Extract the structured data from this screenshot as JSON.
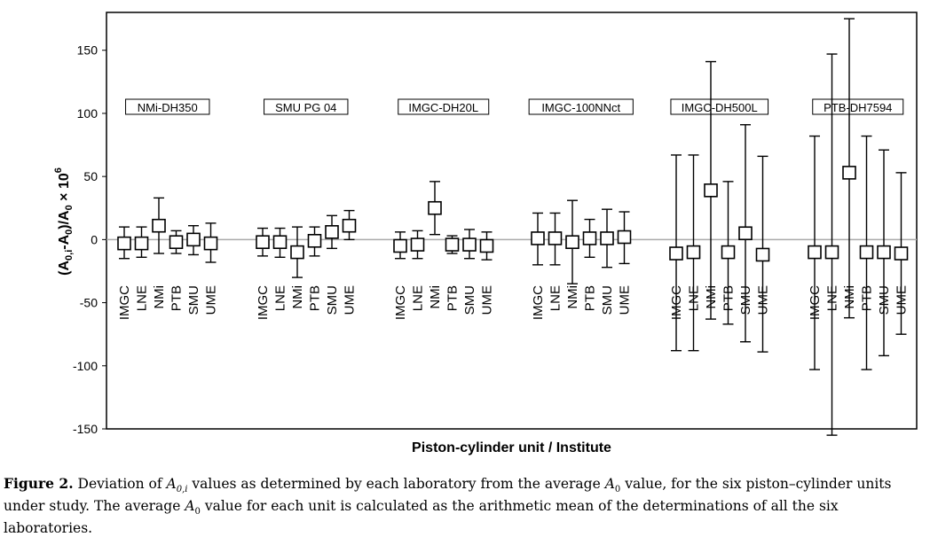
{
  "chart_data": {
    "type": "error-bar",
    "xlabel": "Piston-cylinder unit / Institute",
    "ylabel": "(A0,i-A0)/A0 × 10^6",
    "ylim": [
      -150,
      180
    ],
    "yticks": [
      -150,
      -100,
      -50,
      0,
      50,
      100,
      150
    ],
    "institutes": [
      "IMGC",
      "LNE",
      "NMi",
      "PTB",
      "SMU",
      "UME"
    ],
    "groups": [
      {
        "name": "NMi-DH350",
        "points": [
          {
            "inst": "IMGC",
            "y": -3,
            "lo": -15,
            "hi": 10
          },
          {
            "inst": "LNE",
            "y": -3,
            "lo": -14,
            "hi": 10
          },
          {
            "inst": "NMi",
            "y": 11,
            "lo": -11,
            "hi": 33
          },
          {
            "inst": "PTB",
            "y": -2,
            "lo": -11,
            "hi": 7
          },
          {
            "inst": "SMU",
            "y": 0,
            "lo": -12,
            "hi": 11
          },
          {
            "inst": "UME",
            "y": -3,
            "lo": -18,
            "hi": 13
          }
        ]
      },
      {
        "name": "SMU PG 04",
        "points": [
          {
            "inst": "IMGC",
            "y": -2,
            "lo": -13,
            "hi": 9
          },
          {
            "inst": "LNE",
            "y": -2,
            "lo": -14,
            "hi": 9
          },
          {
            "inst": "NMi",
            "y": -10,
            "lo": -30,
            "hi": 10
          },
          {
            "inst": "PTB",
            "y": -1,
            "lo": -13,
            "hi": 10
          },
          {
            "inst": "SMU",
            "y": 6,
            "lo": -7,
            "hi": 19
          },
          {
            "inst": "UME",
            "y": 11,
            "lo": 0,
            "hi": 23
          }
        ]
      },
      {
        "name": "IMGC-DH20L",
        "points": [
          {
            "inst": "IMGC",
            "y": -5,
            "lo": -15,
            "hi": 6
          },
          {
            "inst": "LNE",
            "y": -4,
            "lo": -15,
            "hi": 7
          },
          {
            "inst": "NMi",
            "y": 25,
            "lo": 4,
            "hi": 46
          },
          {
            "inst": "PTB",
            "y": -4,
            "lo": -11,
            "hi": 3
          },
          {
            "inst": "SMU",
            "y": -4,
            "lo": -15,
            "hi": 8
          },
          {
            "inst": "UME",
            "y": -5,
            "lo": -16,
            "hi": 6
          }
        ]
      },
      {
        "name": "IMGC-100NNct",
        "points": [
          {
            "inst": "IMGC",
            "y": 1,
            "lo": -20,
            "hi": 21
          },
          {
            "inst": "LNE",
            "y": 1,
            "lo": -20,
            "hi": 21
          },
          {
            "inst": "NMi",
            "y": -2,
            "lo": -35,
            "hi": 31
          },
          {
            "inst": "PTB",
            "y": 1,
            "lo": -14,
            "hi": 16
          },
          {
            "inst": "SMU",
            "y": 1,
            "lo": -22,
            "hi": 24
          },
          {
            "inst": "UME",
            "y": 2,
            "lo": -19,
            "hi": 22
          }
        ]
      },
      {
        "name": "IMGC-DH500L",
        "points": [
          {
            "inst": "IMGC",
            "y": -11,
            "lo": -88,
            "hi": 67
          },
          {
            "inst": "LNE",
            "y": -10,
            "lo": -88,
            "hi": 67
          },
          {
            "inst": "NMi",
            "y": 39,
            "lo": -63,
            "hi": 141
          },
          {
            "inst": "PTB",
            "y": -10,
            "lo": -67,
            "hi": 46
          },
          {
            "inst": "SMU",
            "y": 5,
            "lo": -81,
            "hi": 91
          },
          {
            "inst": "UME",
            "y": -12,
            "lo": -89,
            "hi": 66
          }
        ]
      },
      {
        "name": "PTB-DH7594",
        "points": [
          {
            "inst": "IMGC",
            "y": -10,
            "lo": -103,
            "hi": 82
          },
          {
            "inst": "LNE",
            "y": -10,
            "lo": -155,
            "hi": 147
          },
          {
            "inst": "NMi",
            "y": 53,
            "lo": -62,
            "hi": 175
          },
          {
            "inst": "PTB",
            "y": -10,
            "lo": -103,
            "hi": 82
          },
          {
            "inst": "SMU",
            "y": -10,
            "lo": -92,
            "hi": 71
          },
          {
            "inst": "UME",
            "y": -11,
            "lo": -75,
            "hi": 53
          }
        ]
      }
    ]
  },
  "caption": {
    "label": "Figure 2.",
    "text_before": " Deviation of ",
    "symbol_a0i": "A",
    "sub_a0i": "0,i",
    "text_mid": " values as determined by each laboratory from the average ",
    "symbol_a0": "A",
    "sub_a0": "0",
    "text_after": " value, for the six piston–cylinder units under study. The average ",
    "symbol_a0b": "A",
    "sub_a0b": "0",
    "text_end": " value for each unit is calculated as the arithmetic mean of the determinations of all the six laboratories."
  }
}
